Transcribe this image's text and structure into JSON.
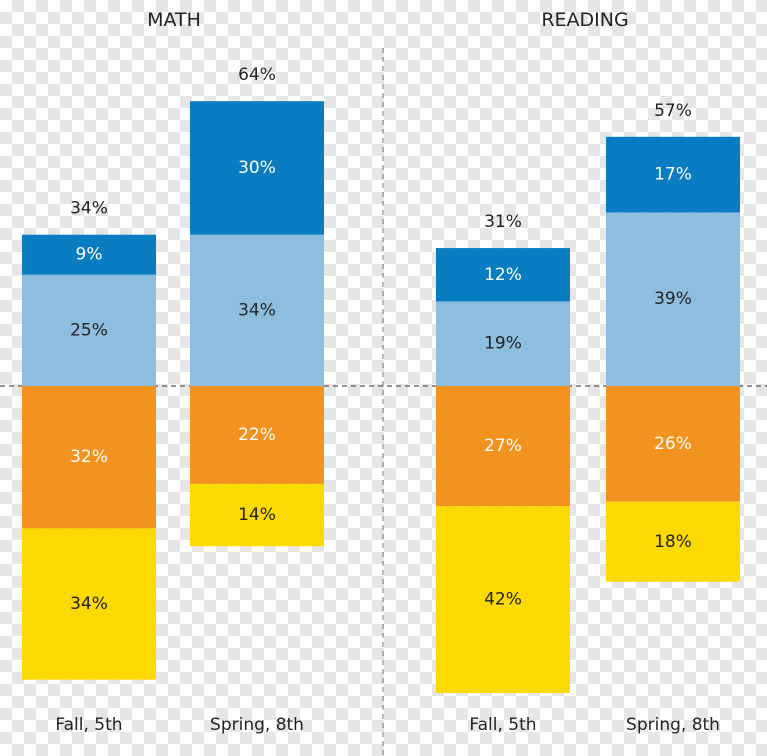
{
  "chart_data": {
    "type": "bar",
    "colors": {
      "top": "#0a7dc2",
      "upper": "#8ebedf",
      "lower": "#f2931f",
      "bottom": "#fcd900"
    },
    "panels": [
      {
        "title": "MATH",
        "bars": [
          {
            "category": "Fall, 5th",
            "total": "34%",
            "above": [
              {
                "label": "9%",
                "value": 9,
                "color": "top"
              },
              {
                "label": "25%",
                "value": 25,
                "color": "upper"
              }
            ],
            "below": [
              {
                "label": "32%",
                "value": 32,
                "color": "lower"
              },
              {
                "label": "34%",
                "value": 34,
                "color": "bottom"
              }
            ]
          },
          {
            "category": "Spring, 8th",
            "total": "64%",
            "above": [
              {
                "label": "30%",
                "value": 30,
                "color": "top"
              },
              {
                "label": "34%",
                "value": 34,
                "color": "upper"
              }
            ],
            "below": [
              {
                "label": "22%",
                "value": 22,
                "color": "lower"
              },
              {
                "label": "14%",
                "value": 14,
                "color": "bottom"
              }
            ]
          }
        ]
      },
      {
        "title": "READING",
        "bars": [
          {
            "category": "Fall, 5th",
            "total": "31%",
            "above": [
              {
                "label": "12%",
                "value": 12,
                "color": "top"
              },
              {
                "label": "19%",
                "value": 19,
                "color": "upper"
              }
            ],
            "below": [
              {
                "label": "27%",
                "value": 27,
                "color": "lower"
              },
              {
                "label": "42%",
                "value": 42,
                "color": "bottom"
              }
            ]
          },
          {
            "category": "Spring, 8th",
            "total": "57%",
            "above": [
              {
                "label": "17%",
                "value": 17,
                "color": "top"
              },
              {
                "label": "39%",
                "value": 39,
                "color": "upper"
              }
            ],
            "below": [
              {
                "label": "26%",
                "value": 26,
                "color": "lower"
              },
              {
                "label": "18%",
                "value": 18,
                "color": "bottom"
              }
            ]
          }
        ]
      }
    ]
  }
}
